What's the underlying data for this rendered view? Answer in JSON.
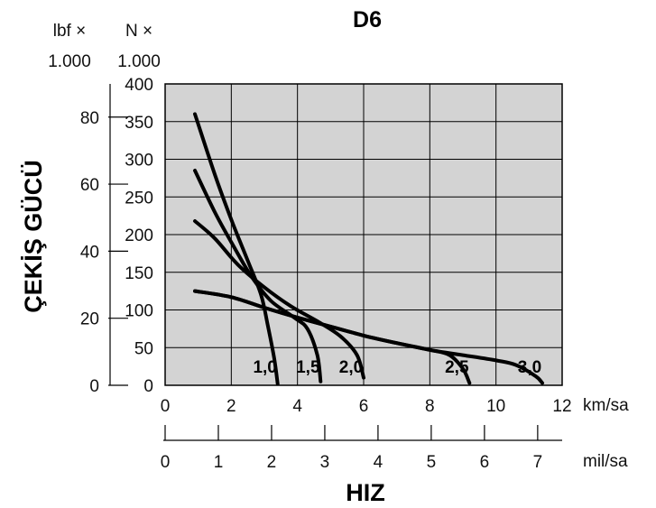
{
  "chart_data": {
    "type": "line",
    "title": "D6",
    "xlabel": "HIZ",
    "ylabel": "ÇEKİŞ GÜCÜ",
    "x_axis_primary": {
      "unit": "km/sa",
      "ticks": [
        "0",
        "2",
        "4",
        "6",
        "8",
        "10",
        "12"
      ],
      "range": [
        0,
        12
      ]
    },
    "x_axis_secondary": {
      "unit": "mil/sa",
      "ticks": [
        "0",
        "1",
        "2",
        "3",
        "4",
        "5",
        "6",
        "7"
      ],
      "range": [
        0,
        7.46
      ]
    },
    "y_axis_primary": {
      "unit_line1": "N ×",
      "unit_line2": "1.000",
      "ticks": [
        "0",
        "50",
        "100",
        "150",
        "200",
        "250",
        "300",
        "350",
        "400"
      ],
      "range": [
        0,
        400
      ]
    },
    "y_axis_secondary": {
      "unit_line1": "lbf ×",
      "unit_line2": "1.000",
      "ticks": [
        "0",
        "20",
        "40",
        "60",
        "80"
      ],
      "range": [
        0,
        89.9
      ]
    },
    "grid": true,
    "background_color": "#d3d3d3",
    "series": [
      {
        "name": "1,0",
        "x": [
          0.9,
          1.5,
          2.0,
          2.5,
          2.9,
          3.1,
          3.3,
          3.4
        ],
        "y": [
          360,
          280,
          220,
          165,
          120,
          80,
          35,
          2
        ]
      },
      {
        "name": "1,5",
        "x": [
          0.9,
          1.5,
          2.0,
          2.6,
          3.2,
          3.9,
          4.3,
          4.6,
          4.7
        ],
        "y": [
          285,
          230,
          190,
          145,
          112,
          90,
          75,
          40,
          5
        ]
      },
      {
        "name": "2,0",
        "x": [
          0.9,
          1.5,
          2.2,
          3.0,
          3.8,
          4.6,
          5.3,
          5.8,
          6.0
        ],
        "y": [
          218,
          195,
          160,
          130,
          105,
          85,
          65,
          40,
          10
        ]
      },
      {
        "name": "2,5",
        "x": [
          0.9,
          2.0,
          3.0,
          4.0,
          5.0,
          6.0,
          7.0,
          8.0,
          8.6,
          9.0,
          9.2
        ],
        "y": [
          125,
          117,
          103,
          90,
          78,
          66,
          56,
          47,
          40,
          22,
          3
        ]
      },
      {
        "name": "3,0",
        "x": [
          0.9,
          2.0,
          3.0,
          4.0,
          5.0,
          6.0,
          7.0,
          8.0,
          9.0,
          10.0,
          10.6,
          11.2,
          11.4
        ],
        "y": [
          125,
          117,
          103,
          90,
          78,
          66,
          56,
          47,
          40,
          33,
          27,
          12,
          3
        ]
      }
    ]
  }
}
